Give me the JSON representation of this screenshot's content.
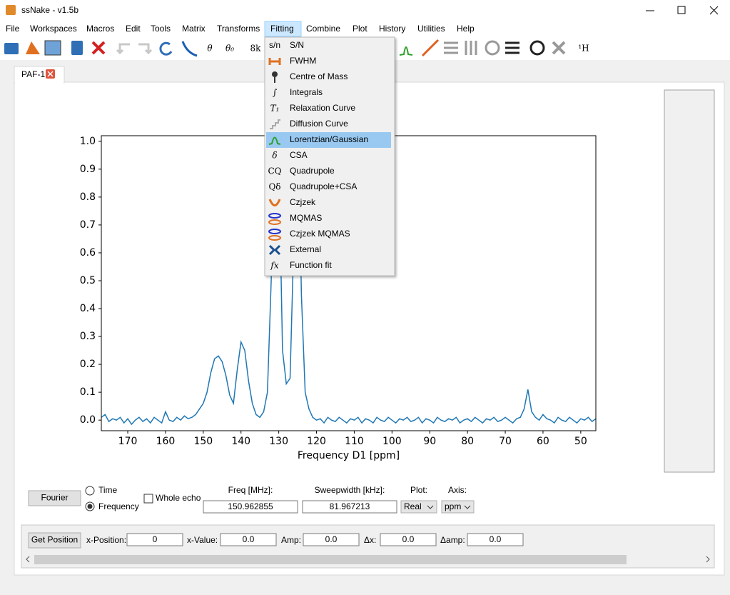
{
  "window": {
    "title": "ssNake - v1.5b"
  },
  "menu": [
    {
      "label": "File"
    },
    {
      "label": "Workspaces"
    },
    {
      "label": "Macros"
    },
    {
      "label": "Edit"
    },
    {
      "label": "Tools"
    },
    {
      "label": "Matrix"
    },
    {
      "label": "Transforms"
    },
    {
      "label": "Fitting",
      "open": true
    },
    {
      "label": "Combine"
    },
    {
      "label": "Plot"
    },
    {
      "label": "History"
    },
    {
      "label": "Utilities"
    },
    {
      "label": "Help"
    }
  ],
  "toolbar": [
    "θ",
    "θ₀",
    "8k",
    "¹H"
  ],
  "fitting_menu": [
    {
      "icon": "s/n",
      "label": "S/N"
    },
    {
      "label": "FWHM"
    },
    {
      "label": "Centre of Mass"
    },
    {
      "icon": "∫",
      "label": "Integrals"
    },
    {
      "icon": "T₁",
      "label": "Relaxation Curve",
      "disabled": true
    },
    {
      "label": "Diffusion Curve",
      "disabled": true
    },
    {
      "label": "Lorentzian/Gaussian",
      "highlighted": true
    },
    {
      "icon": "δ",
      "label": "CSA"
    },
    {
      "icon": "CQ",
      "label": "Quadrupole"
    },
    {
      "icon": "Qδ",
      "label": "Quadrupole+CSA"
    },
    {
      "label": "Czjzek"
    },
    {
      "label": "MQMAS"
    },
    {
      "label": "Czjzek MQMAS"
    },
    {
      "label": "External"
    },
    {
      "icon": "fx",
      "label": "Function fit"
    }
  ],
  "tab": "PAF-1",
  "chart_data": {
    "type": "line",
    "xlabel": "Frequency D1 [ppm]",
    "color": "#1f77b4",
    "xlim": [
      177.0,
      46.0
    ],
    "ylim": [
      -0.038,
      1.02
    ],
    "xticks": [
      170,
      160,
      150,
      140,
      130,
      120,
      110,
      100,
      90,
      80,
      70,
      60,
      50
    ],
    "yticks": [
      {
        "value": 0,
        "label": "0.0"
      },
      0.1,
      0.2,
      0.3,
      0.4,
      0.5,
      0.6,
      0.7,
      0.8,
      0.9,
      {
        "value": 1,
        "label": "1.0"
      }
    ],
    "x": [
      177,
      176,
      175,
      174,
      173,
      172,
      171,
      170,
      169,
      168,
      167,
      166,
      165,
      164,
      163,
      162,
      161,
      160,
      159,
      158,
      157,
      156,
      155,
      154,
      153,
      152,
      151,
      150,
      149,
      148,
      147,
      146,
      145,
      144,
      143,
      142,
      141,
      140,
      139,
      138,
      137,
      136,
      135,
      134,
      133,
      132,
      131,
      130,
      129,
      128,
      127,
      126,
      125,
      124,
      123,
      122,
      121,
      120,
      119,
      118,
      117,
      116,
      115,
      114,
      113,
      112,
      111,
      110,
      109,
      108,
      107,
      106,
      105,
      104,
      103,
      102,
      101,
      100,
      99,
      98,
      97,
      96,
      95,
      94,
      93,
      92,
      91,
      90,
      89,
      88,
      87,
      86,
      85,
      84,
      83,
      82,
      81,
      80,
      79,
      78,
      77,
      76,
      75,
      74,
      73,
      72,
      71,
      70,
      69,
      68,
      67,
      66,
      65,
      64,
      63,
      62,
      61,
      60,
      59,
      58,
      57,
      56,
      55,
      54,
      53,
      52,
      51,
      50,
      49,
      48,
      47,
      46
    ],
    "values": [
      0.01,
      0.02,
      -0.005,
      0.005,
      0.0,
      0.01,
      -0.01,
      0.005,
      -0.015,
      0.0,
      0.01,
      -0.005,
      0.005,
      -0.01,
      0.01,
      0.0,
      -0.01,
      0.03,
      0.0,
      -0.005,
      0.01,
      0.0,
      0.015,
      0.005,
      0.01,
      0.02,
      0.04,
      0.06,
      0.1,
      0.17,
      0.22,
      0.23,
      0.21,
      0.16,
      0.09,
      0.06,
      0.18,
      0.28,
      0.25,
      0.14,
      0.06,
      0.02,
      0.01,
      0.03,
      0.1,
      0.5,
      1.3,
      0.95,
      0.25,
      0.13,
      0.15,
      0.65,
      1.2,
      0.45,
      0.1,
      0.04,
      0.01,
      0.0,
      0.005,
      -0.01,
      0.01,
      0.0,
      -0.005,
      0.01,
      0.0,
      -0.01,
      0.005,
      0.0,
      0.01,
      -0.01,
      0.005,
      0.0,
      -0.01,
      0.01,
      0.0,
      -0.005,
      0.01,
      0.0,
      -0.01,
      0.005,
      0.0,
      0.01,
      -0.005,
      0.0,
      0.01,
      -0.01,
      0.005,
      0.0,
      -0.01,
      0.01,
      0.0,
      -0.005,
      0.005,
      0.0,
      0.01,
      -0.01,
      0.0,
      0.005,
      -0.005,
      0.01,
      0.0,
      -0.01,
      0.005,
      0.0,
      0.01,
      -0.005,
      0.0,
      0.01,
      0.0,
      -0.01,
      0.005,
      0.01,
      0.04,
      0.11,
      0.03,
      0.01,
      0.0,
      0.02,
      0.005,
      0.0,
      -0.01,
      0.01,
      0.0,
      -0.005,
      0.01,
      0.0,
      -0.01,
      0.005,
      0.0,
      0.01,
      -0.005,
      0.005
    ]
  },
  "controls": {
    "fourier": "Fourier",
    "time": "Time",
    "frequency": "Frequency",
    "frequency_selected": true,
    "whole_echo": "Whole echo",
    "whole_echo_checked": false,
    "freq_label": "Freq [MHz]:",
    "freq": "150.962855",
    "sweepwidth_label": "Sweepwidth [kHz]:",
    "sweepwidth": "81.967213",
    "plot_label": "Plot:",
    "plot": "Real",
    "axis_label": "Axis:",
    "axis": "ppm"
  },
  "position": {
    "button": "Get Position",
    "fields": [
      {
        "label": "x-Position:",
        "value": "0"
      },
      {
        "label": "x-Value:",
        "value": "0.0"
      },
      {
        "label": "Amp:",
        "value": "0.0"
      },
      {
        "label": "Δx:",
        "value": "0.0"
      },
      {
        "label": "Δamp:",
        "value": "0.0"
      }
    ]
  }
}
